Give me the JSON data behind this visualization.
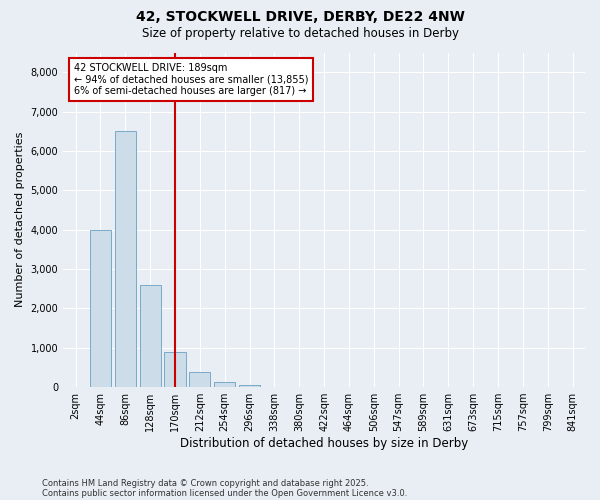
{
  "title_line1": "42, STOCKWELL DRIVE, DERBY, DE22 4NW",
  "title_line2": "Size of property relative to detached houses in Derby",
  "xlabel": "Distribution of detached houses by size in Derby",
  "ylabel": "Number of detached properties",
  "categories": [
    "2sqm",
    "44sqm",
    "86sqm",
    "128sqm",
    "170sqm",
    "212sqm",
    "254sqm",
    "296sqm",
    "338sqm",
    "380sqm",
    "422sqm",
    "464sqm",
    "506sqm",
    "547sqm",
    "589sqm",
    "631sqm",
    "673sqm",
    "715sqm",
    "757sqm",
    "799sqm",
    "841sqm"
  ],
  "bar_values": [
    0,
    4000,
    6500,
    2600,
    900,
    380,
    140,
    50,
    10,
    0,
    0,
    0,
    0,
    0,
    0,
    0,
    0,
    0,
    0,
    0,
    0
  ],
  "bar_color": "#ccdce8",
  "bar_edge_color": "#7aaac8",
  "ylim": [
    0,
    8500
  ],
  "yticks": [
    0,
    1000,
    2000,
    3000,
    4000,
    5000,
    6000,
    7000,
    8000
  ],
  "red_line_index": 4.5,
  "annotation_text": "42 STOCKWELL DRIVE: 189sqm\n← 94% of detached houses are smaller (13,855)\n6% of semi-detached houses are larger (817) →",
  "annotation_box_facecolor": "#ffffff",
  "annotation_box_edgecolor": "#cc0000",
  "red_line_color": "#cc0000",
  "footnote_line1": "Contains HM Land Registry data © Crown copyright and database right 2025.",
  "footnote_line2": "Contains public sector information licensed under the Open Government Licence v3.0.",
  "bg_color": "#e8eef4",
  "plot_bg_color": "#e8eef4",
  "grid_color": "#ffffff",
  "title1_fontsize": 10,
  "title2_fontsize": 8.5,
  "xlabel_fontsize": 8.5,
  "ylabel_fontsize": 8,
  "tick_fontsize": 7,
  "annot_fontsize": 7,
  "footnote_fontsize": 6
}
